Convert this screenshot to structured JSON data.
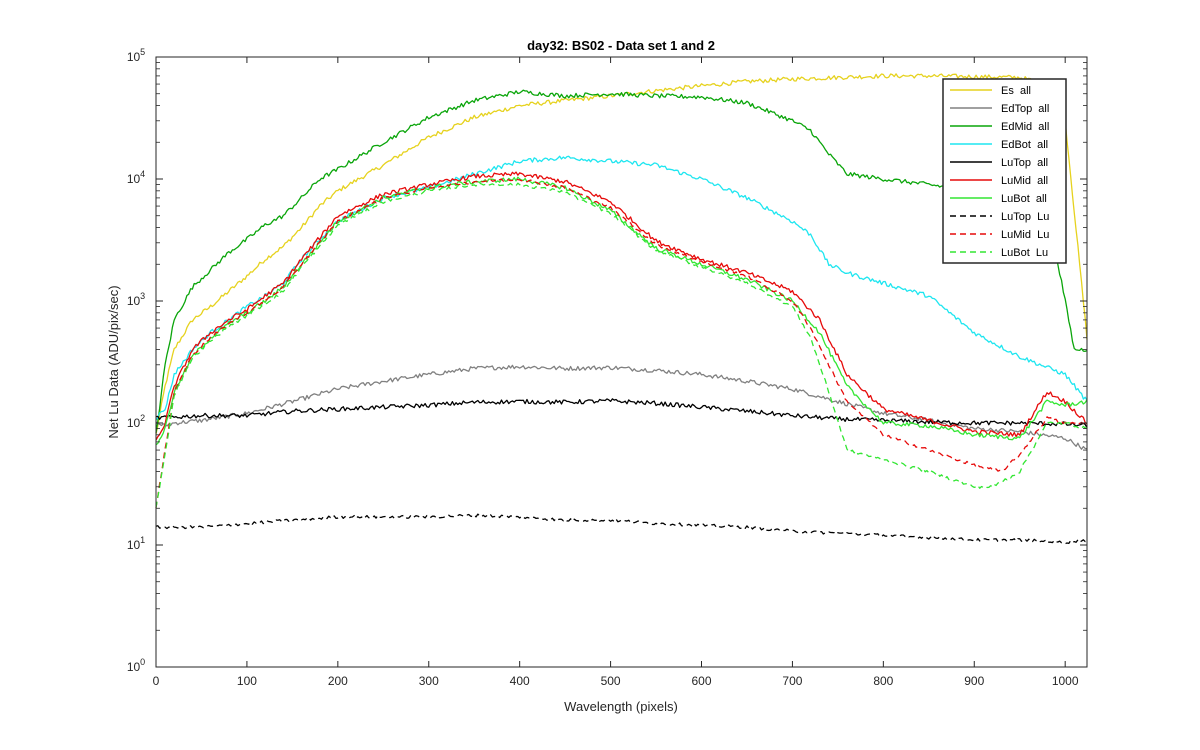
{
  "chart_data": {
    "type": "line",
    "title": "day32: BS02 - Data set 1 and 2",
    "xlabel": "Wavelength (pixels)",
    "ylabel": "Net Lu Data (ADU/pix/sec)",
    "yscale": "log",
    "xlim": [
      0,
      1024
    ],
    "ylim": [
      1,
      100000
    ],
    "xticks": [
      0,
      100,
      200,
      300,
      400,
      500,
      600,
      700,
      800,
      900,
      1000
    ],
    "yticks": [
      {
        "value": 1,
        "base": "10",
        "exp": "0"
      },
      {
        "value": 10,
        "base": "10",
        "exp": "1"
      },
      {
        "value": 100,
        "base": "10",
        "exp": "2"
      },
      {
        "value": 1000,
        "base": "10",
        "exp": "3"
      },
      {
        "value": 10000,
        "base": "10",
        "exp": "4"
      },
      {
        "value": 100000,
        "base": "10",
        "exp": "5"
      }
    ],
    "legend_position": "top-right",
    "series": [
      {
        "name": "Es  all",
        "color": "#e6d21e",
        "dash": "solid",
        "x": [
          0,
          10,
          20,
          40,
          60,
          80,
          100,
          120,
          140,
          160,
          180,
          200,
          250,
          300,
          350,
          400,
          450,
          500,
          550,
          600,
          650,
          700,
          750,
          800,
          850,
          900,
          950,
          980,
          1000,
          1024
        ],
        "y": [
          80,
          200,
          400,
          700,
          900,
          1200,
          1600,
          2200,
          2800,
          4000,
          6000,
          8000,
          13000,
          22000,
          32000,
          40000,
          44000,
          48000,
          53000,
          58000,
          63000,
          66000,
          68000,
          70000,
          70000,
          69000,
          68000,
          60000,
          30000,
          500
        ]
      },
      {
        "name": "EdTop  all",
        "color": "#808080",
        "dash": "solid",
        "x": [
          0,
          10,
          20,
          50,
          100,
          150,
          200,
          250,
          300,
          350,
          400,
          450,
          500,
          550,
          600,
          650,
          700,
          750,
          800,
          850,
          900,
          950,
          1000,
          1024
        ],
        "y": [
          100,
          95,
          100,
          105,
          120,
          150,
          190,
          220,
          250,
          280,
          290,
          280,
          285,
          270,
          250,
          220,
          190,
          150,
          120,
          105,
          90,
          85,
          75,
          60
        ]
      },
      {
        "name": "EdMid  all",
        "color": "#0aa50a",
        "dash": "solid",
        "x": [
          0,
          10,
          20,
          40,
          60,
          80,
          100,
          120,
          140,
          160,
          180,
          200,
          250,
          300,
          350,
          400,
          450,
          500,
          550,
          600,
          650,
          700,
          720,
          740,
          760,
          800,
          850,
          900,
          950,
          980,
          1000,
          1010,
          1024
        ],
        "y": [
          80,
          300,
          700,
          1300,
          1800,
          2500,
          3200,
          4200,
          5000,
          7000,
          10000,
          12000,
          20000,
          32000,
          44000,
          52000,
          48000,
          50000,
          48000,
          47000,
          42000,
          30000,
          25000,
          16000,
          11000,
          10000,
          9000,
          8000,
          7000,
          6000,
          1000,
          400,
          400
        ]
      },
      {
        "name": "EdBot  all",
        "color": "#1ee6f0",
        "dash": "solid",
        "x": [
          0,
          10,
          20,
          40,
          60,
          80,
          100,
          120,
          140,
          160,
          180,
          200,
          250,
          300,
          350,
          400,
          450,
          500,
          550,
          600,
          650,
          700,
          720,
          740,
          760,
          800,
          850,
          900,
          950,
          1000,
          1024
        ],
        "y": [
          110,
          130,
          250,
          400,
          550,
          700,
          900,
          1100,
          1400,
          2200,
          3200,
          4500,
          7000,
          8500,
          11000,
          14000,
          15000,
          14000,
          13000,
          10000,
          7000,
          4500,
          3500,
          2000,
          1700,
          1400,
          1100,
          550,
          350,
          250,
          150
        ]
      },
      {
        "name": "LuTop  all",
        "color": "#000000",
        "dash": "solid",
        "x": [
          0,
          50,
          100,
          150,
          200,
          250,
          300,
          350,
          400,
          450,
          500,
          550,
          600,
          650,
          700,
          750,
          800,
          850,
          900,
          950,
          1000,
          1024
        ],
        "y": [
          110,
          115,
          115,
          125,
          130,
          135,
          140,
          148,
          150,
          148,
          152,
          145,
          135,
          125,
          115,
          108,
          105,
          102,
          100,
          100,
          98,
          95
        ]
      },
      {
        "name": "LuMid  all",
        "color": "#e60a0a",
        "dash": "solid",
        "x": [
          0,
          10,
          20,
          40,
          60,
          80,
          100,
          120,
          140,
          160,
          180,
          200,
          250,
          300,
          350,
          400,
          450,
          500,
          550,
          600,
          650,
          700,
          730,
          760,
          800,
          850,
          900,
          950,
          980,
          1000,
          1024
        ],
        "y": [
          70,
          100,
          200,
          400,
          550,
          700,
          850,
          1100,
          1400,
          2200,
          3300,
          5000,
          7500,
          9000,
          10500,
          11000,
          9500,
          6500,
          3100,
          2200,
          1700,
          1200,
          700,
          250,
          130,
          105,
          85,
          80,
          180,
          150,
          100
        ]
      },
      {
        "name": "LuBot  all",
        "color": "#32e632",
        "dash": "solid",
        "x": [
          0,
          10,
          20,
          40,
          60,
          80,
          100,
          120,
          140,
          160,
          180,
          200,
          250,
          300,
          350,
          400,
          450,
          500,
          550,
          600,
          650,
          700,
          730,
          760,
          800,
          850,
          900,
          950,
          980,
          1000,
          1024
        ],
        "y": [
          65,
          90,
          180,
          350,
          500,
          650,
          800,
          1000,
          1300,
          2000,
          3000,
          4500,
          7000,
          8500,
          9500,
          10000,
          8500,
          5500,
          2700,
          2000,
          1500,
          1000,
          550,
          200,
          100,
          95,
          80,
          75,
          150,
          140,
          150
        ]
      },
      {
        "name": "LuTop  Lu",
        "color": "#000000",
        "dash": "dashed",
        "x": [
          0,
          50,
          100,
          150,
          200,
          250,
          300,
          350,
          400,
          450,
          500,
          550,
          600,
          650,
          700,
          750,
          800,
          850,
          900,
          950,
          1000,
          1024
        ],
        "y": [
          14,
          14,
          15,
          16,
          17,
          17,
          17,
          17.5,
          17,
          16,
          16,
          15,
          14.5,
          14,
          13,
          12.5,
          12,
          11.5,
          11,
          11,
          10.5,
          11
        ]
      },
      {
        "name": "LuMid  Lu",
        "color": "#e60a0a",
        "dash": "dashed",
        "x": [
          0,
          10,
          20,
          40,
          60,
          80,
          100,
          120,
          140,
          160,
          180,
          200,
          250,
          300,
          350,
          400,
          450,
          500,
          550,
          600,
          650,
          700,
          720,
          740,
          760,
          800,
          850,
          900,
          930,
          950,
          980,
          1000,
          1024
        ],
        "y": [
          20,
          60,
          180,
          360,
          500,
          650,
          800,
          1000,
          1300,
          2000,
          3000,
          4500,
          7000,
          8500,
          9500,
          10000,
          8500,
          5800,
          2900,
          2100,
          1600,
          1000,
          600,
          300,
          150,
          80,
          60,
          45,
          40,
          55,
          110,
          100,
          100
        ]
      },
      {
        "name": "LuBot  Lu",
        "color": "#32e632",
        "dash": "dashed",
        "x": [
          0,
          10,
          20,
          40,
          60,
          80,
          100,
          120,
          140,
          160,
          180,
          200,
          250,
          300,
          350,
          400,
          450,
          500,
          550,
          600,
          650,
          700,
          720,
          740,
          760,
          800,
          850,
          900,
          920,
          950,
          980,
          1000,
          1024
        ],
        "y": [
          20,
          55,
          170,
          340,
          470,
          620,
          760,
          950,
          1200,
          1900,
          2800,
          4200,
          6500,
          8000,
          9000,
          9000,
          7800,
          5200,
          2600,
          1900,
          1400,
          900,
          500,
          180,
          60,
          50,
          40,
          30,
          30,
          40,
          100,
          100,
          90
        ]
      }
    ]
  }
}
